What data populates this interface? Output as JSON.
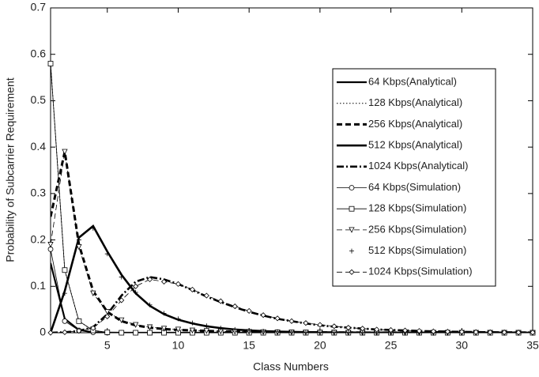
{
  "chart_data": {
    "type": "line",
    "xlabel": "Class Numbers",
    "ylabel": "Probability of Subcarrier Requirement",
    "x": [
      1,
      2,
      3,
      4,
      5,
      6,
      7,
      8,
      9,
      10,
      11,
      12,
      13,
      14,
      15,
      16,
      17,
      18,
      19,
      20,
      21,
      22,
      23,
      24,
      25,
      26,
      27,
      28,
      29,
      30,
      31,
      32,
      33,
      34,
      35
    ],
    "xlim": [
      1,
      35
    ],
    "xticks": [
      5,
      10,
      15,
      20,
      25,
      30,
      35
    ],
    "ylim": [
      0,
      0.7
    ],
    "yticks": [
      0,
      0.1,
      0.2,
      0.3,
      0.4,
      0.5,
      0.6,
      0.7
    ],
    "grid": false,
    "legend": "upper right",
    "series": [
      {
        "name": "64 Kbps(Analytical)",
        "color": "#000000",
        "dash": "solid",
        "width": 2.2,
        "marker": "none",
        "values": [
          0.15,
          0.03,
          0.006,
          0.001,
          0.0002,
          0,
          0,
          0,
          0,
          0,
          0,
          0,
          0,
          0,
          0,
          0,
          0,
          0,
          0,
          0,
          0,
          0,
          0,
          0,
          0,
          0,
          0,
          0,
          0,
          0,
          0,
          0,
          0,
          0,
          0
        ]
      },
      {
        "name": "128 Kbps(Analytical)",
        "color": "#000000",
        "dash": "dotted",
        "width": 1,
        "marker": "none",
        "values": [
          0.58,
          0.135,
          0.025,
          0.005,
          0.001,
          0.0002,
          0,
          0,
          0,
          0,
          0,
          0,
          0,
          0,
          0,
          0,
          0,
          0,
          0,
          0,
          0,
          0,
          0,
          0,
          0,
          0,
          0,
          0,
          0,
          0,
          0,
          0,
          0,
          0,
          0
        ]
      },
      {
        "name": "256 Kbps(Analytical)",
        "color": "#000000",
        "dash": "dashed",
        "width": 3,
        "marker": "none",
        "values": [
          0.25,
          0.39,
          0.19,
          0.09,
          0.045,
          0.025,
          0.016,
          0.011,
          0.008,
          0.006,
          0.005,
          0.004,
          0.003,
          0.0025,
          0.002,
          0.0015,
          0.0012,
          0.001,
          0.0008,
          0.0006,
          0.0005,
          0.0004,
          0.0003,
          0.0002,
          0.0002,
          0.0001,
          0.0001,
          0.0001,
          0,
          0,
          0,
          0,
          0,
          0,
          0
        ]
      },
      {
        "name": "512 Kbps(Analytical)",
        "color": "#000000",
        "dash": "solid",
        "width": 2.6,
        "marker": "none",
        "values": [
          0,
          0.09,
          0.205,
          0.23,
          0.175,
          0.125,
          0.085,
          0.058,
          0.04,
          0.028,
          0.02,
          0.014,
          0.01,
          0.007,
          0.005,
          0.0035,
          0.0025,
          0.0018,
          0.0013,
          0.001,
          0.0007,
          0.0005,
          0.0004,
          0.0003,
          0.0002,
          0.0002,
          0.0001,
          0.0001,
          0.0001,
          0,
          0,
          0,
          0,
          0,
          0
        ]
      },
      {
        "name": "1024 Kbps(Analytical)",
        "color": "#000000",
        "dash": "dashdot",
        "width": 2.6,
        "marker": "none",
        "values": [
          0,
          0.001,
          0.004,
          0.012,
          0.04,
          0.08,
          0.11,
          0.12,
          0.115,
          0.105,
          0.092,
          0.078,
          0.066,
          0.055,
          0.045,
          0.037,
          0.03,
          0.025,
          0.02,
          0.016,
          0.013,
          0.011,
          0.009,
          0.007,
          0.006,
          0.005,
          0.004,
          0.003,
          0.0025,
          0.002,
          0.0015,
          0.0012,
          0.001,
          0.0008,
          0.0006
        ]
      },
      {
        "name": "64 Kbps(Simulation)",
        "color": "#000000",
        "dash": "solid",
        "width": 0.8,
        "marker": "circle",
        "values": [
          0.18,
          0.025,
          0.005,
          0.001,
          0,
          0,
          0,
          0,
          0,
          0,
          0,
          0,
          0,
          0,
          0,
          0,
          0,
          0,
          0,
          0,
          0,
          0,
          0,
          0,
          0,
          0,
          0,
          0,
          0,
          0,
          0,
          0,
          0,
          0,
          0
        ]
      },
      {
        "name": "128 Kbps(Simulation)",
        "color": "#000000",
        "dash": "solid",
        "width": 0.8,
        "marker": "square",
        "values": [
          0.58,
          0.135,
          0.025,
          0.005,
          0.001,
          0,
          0,
          0,
          0,
          0,
          0,
          0,
          0,
          0,
          0,
          0,
          0,
          0,
          0,
          0,
          0,
          0,
          0,
          0,
          0,
          0,
          0,
          0,
          0,
          0,
          0,
          0,
          0,
          0,
          0
        ]
      },
      {
        "name": "256 Kbps(Simulation)",
        "color": "#000000",
        "dash": "dashed",
        "width": 0.8,
        "marker": "triangle",
        "values": [
          0.19,
          0.39,
          0.185,
          0.085,
          0.045,
          0.027,
          0.017,
          0.012,
          0.009,
          0.007,
          0.005,
          0.004,
          0.003,
          0.0025,
          0.002,
          0.0015,
          0.001,
          0.001,
          0.0008,
          0.0006,
          0.0005,
          0.0004,
          0.0003,
          0.0002,
          0.0002,
          0.0001,
          0.0001,
          0.0001,
          0,
          0,
          0,
          0,
          0,
          0,
          0
        ]
      },
      {
        "name": "512 Kbps(Simulation)",
        "color": "#000000",
        "dash": "none",
        "width": 0.8,
        "marker": "plus",
        "values": [
          0,
          0.085,
          0.2,
          0.225,
          0.17,
          0.12,
          0.087,
          0.06,
          0.042,
          0.03,
          0.021,
          0.015,
          0.01,
          0.007,
          0.005,
          0.0035,
          0.0025,
          0.0018,
          0.0013,
          0.001,
          0.0007,
          0.0005,
          0.0004,
          0.0003,
          0.0002,
          0.0002,
          0.0001,
          0.0001,
          0.0001,
          0,
          0,
          0,
          0,
          0,
          0
        ]
      },
      {
        "name": "1024 Kbps(Simulation)",
        "color": "#000000",
        "dash": "dashed",
        "width": 0.8,
        "marker": "diamond",
        "values": [
          0,
          0.001,
          0.004,
          0.01,
          0.035,
          0.07,
          0.1,
          0.115,
          0.11,
          0.105,
          0.093,
          0.08,
          0.068,
          0.057,
          0.047,
          0.038,
          0.031,
          0.025,
          0.021,
          0.017,
          0.014,
          0.011,
          0.009,
          0.007,
          0.006,
          0.005,
          0.004,
          0.003,
          0.0025,
          0.002,
          0.0015,
          0.0012,
          0.001,
          0.0008,
          0.0006
        ]
      }
    ]
  }
}
